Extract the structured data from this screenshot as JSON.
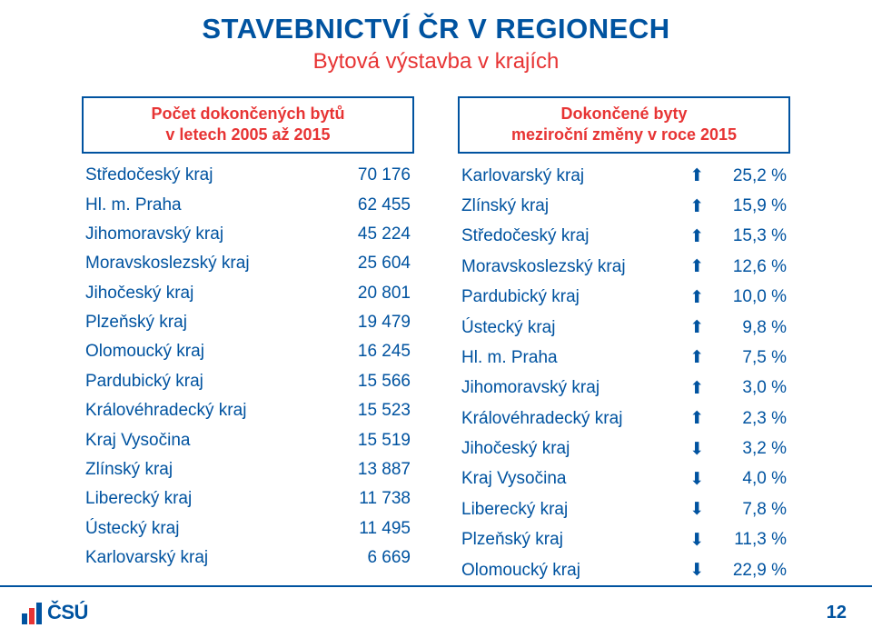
{
  "title_main": "STAVEBNICTVÍ ČR V REGIONECH",
  "title_sub": "Bytová výstavba v krajích",
  "page_number": "12",
  "logo_text": "ČSÚ",
  "colors": {
    "primary": "#0053a0",
    "accent": "#e73434",
    "up": "#2e8f3a",
    "down": "#e73434",
    "background": "#ffffff"
  },
  "left": {
    "header_line1": "Počet dokončených bytů",
    "header_line2": "v letech 2005 až 2015",
    "rows": [
      {
        "name": "Středočeský kraj",
        "value": "70 176"
      },
      {
        "name": "Hl. m. Praha",
        "value": "62 455"
      },
      {
        "name": "Jihomoravský kraj",
        "value": "45 224"
      },
      {
        "name": "Moravskoslezský kraj",
        "value": "25 604"
      },
      {
        "name": "Jihočeský kraj",
        "value": "20 801"
      },
      {
        "name": "Plzeňský kraj",
        "value": "19 479"
      },
      {
        "name": "Olomoucký kraj",
        "value": "16 245"
      },
      {
        "name": "Pardubický kraj",
        "value": "15 566"
      },
      {
        "name": "Královéhradecký kraj",
        "value": "15 523"
      },
      {
        "name": "Kraj Vysočina",
        "value": "15 519"
      },
      {
        "name": "Zlínský kraj",
        "value": "13 887"
      },
      {
        "name": "Liberecký kraj",
        "value": "11 738"
      },
      {
        "name": "Ústecký kraj",
        "value": "11 495"
      },
      {
        "name": "Karlovarský kraj",
        "value": "6 669"
      }
    ]
  },
  "right": {
    "header_line1": "Dokončené byty",
    "header_line2": "meziroční změny v roce 2015",
    "rows": [
      {
        "name": "Karlovarský kraj",
        "dir": "up",
        "value": "25,2 %"
      },
      {
        "name": "Zlínský kraj",
        "dir": "up",
        "value": "15,9 %"
      },
      {
        "name": "Středočeský kraj",
        "dir": "up",
        "value": "15,3 %"
      },
      {
        "name": "Moravskoslezský kraj",
        "dir": "up",
        "value": "12,6 %"
      },
      {
        "name": "Pardubický kraj",
        "dir": "up",
        "value": "10,0 %"
      },
      {
        "name": "Ústecký kraj",
        "dir": "up",
        "value": "9,8 %"
      },
      {
        "name": "Hl. m. Praha",
        "dir": "up",
        "value": "7,5 %"
      },
      {
        "name": "Jihomoravský kraj",
        "dir": "up",
        "value": "3,0 %"
      },
      {
        "name": "Královéhradecký kraj",
        "dir": "up",
        "value": "2,3 %"
      },
      {
        "name": "Jihočeský kraj",
        "dir": "down",
        "value": "3,2 %"
      },
      {
        "name": "Kraj Vysočina",
        "dir": "down",
        "value": "4,0 %"
      },
      {
        "name": "Liberecký kraj",
        "dir": "down",
        "value": "7,8 %"
      },
      {
        "name": "Plzeňský kraj",
        "dir": "down",
        "value": "11,3 %"
      },
      {
        "name": "Olomoucký kraj",
        "dir": "down",
        "value": "22,9 %"
      }
    ]
  }
}
